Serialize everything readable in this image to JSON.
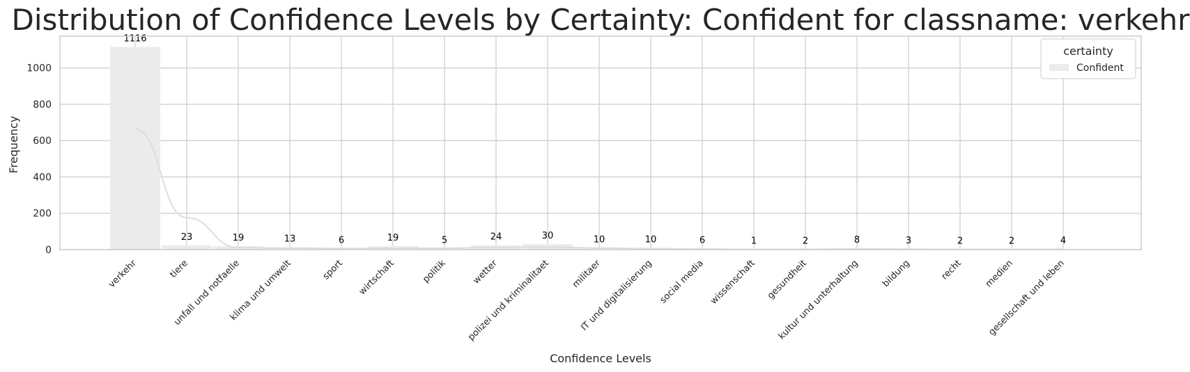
{
  "chart_data": {
    "type": "bar",
    "title": "Distribution of Confidence Levels by Certainty: Confident for classname: verkehr",
    "xlabel": "Confidence Levels",
    "ylabel": "Frequency",
    "ylim": [
      0,
      1175
    ],
    "yticks": [
      0,
      200,
      400,
      600,
      800,
      1000
    ],
    "grid": true,
    "legend": {
      "title": "certainty",
      "placement": "top-right",
      "entries": [
        {
          "name": "Confident",
          "color": "#ebebeb"
        }
      ]
    },
    "categories": [
      "verkehr",
      "tiere",
      "unfall und notfaelle",
      "klima und umwelt",
      "sport",
      "wirtschaft",
      "politik",
      "wetter",
      "polizei und kriminalitaet",
      "militaer",
      "IT und digitalisierung",
      "social media",
      "wissenschaft",
      "gesundheit",
      "kultur und unterhaltung",
      "bildung",
      "recht",
      "medien",
      "gesellschaft und leben"
    ],
    "series": [
      {
        "name": "Confident",
        "color": "#ebebeb",
        "values": [
          1116,
          23,
          19,
          13,
          6,
          19,
          5,
          24,
          30,
          10,
          10,
          6,
          1,
          2,
          8,
          3,
          2,
          2,
          4
        ]
      }
    ],
    "kde_color": "#dddddd"
  }
}
